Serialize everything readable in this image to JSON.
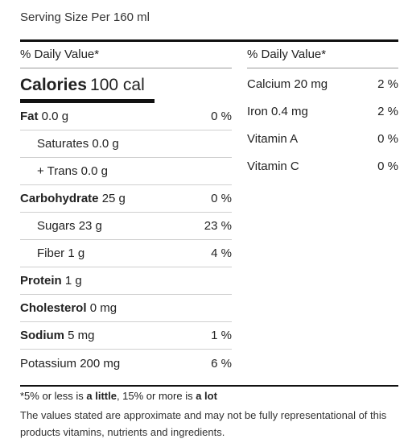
{
  "serving": "Serving Size Per 160 ml",
  "daily_value_label": "% Daily Value*",
  "calories": {
    "label": "Calories",
    "value": "100 cal"
  },
  "left_rows": [
    {
      "label": "Fat",
      "amount": "0.0 g",
      "percent": "0 %",
      "bold": true,
      "indent": false
    },
    {
      "label": "Saturates",
      "amount": "0.0 g",
      "percent": "",
      "bold": false,
      "indent": true
    },
    {
      "label": "+ Trans",
      "amount": "0.0 g",
      "percent": "",
      "bold": false,
      "indent": true
    },
    {
      "label": "Carbohydrate",
      "amount": "25 g",
      "percent": "0 %",
      "bold": true,
      "indent": false
    },
    {
      "label": "Sugars",
      "amount": "23 g",
      "percent": "23 %",
      "bold": false,
      "indent": true
    },
    {
      "label": "Fiber",
      "amount": "1 g",
      "percent": "4 %",
      "bold": false,
      "indent": true
    },
    {
      "label": "Protein",
      "amount": "1 g",
      "percent": "",
      "bold": true,
      "indent": false
    },
    {
      "label": "Cholesterol",
      "amount": "0 mg",
      "percent": "",
      "bold": true,
      "indent": false
    },
    {
      "label": "Sodium",
      "amount": "5 mg",
      "percent": "1 %",
      "bold": true,
      "indent": false
    },
    {
      "label": "Potassium",
      "amount": "200 mg",
      "percent": "6 %",
      "bold": false,
      "indent": false
    }
  ],
  "right_rows": [
    {
      "label": "Calcium",
      "amount": "20 mg",
      "percent": "2 %"
    },
    {
      "label": "Iron",
      "amount": "0.4 mg",
      "percent": "2 %"
    },
    {
      "label": "Vitamin A",
      "amount": "",
      "percent": "0 %"
    },
    {
      "label": "Vitamin C",
      "amount": "",
      "percent": "0 %"
    }
  ],
  "footnote": {
    "prefix": "*5% or less is ",
    "little": "a little",
    "middle": ", 15% or more is ",
    "lot": "a lot"
  },
  "disclaimer": "The values stated are approximate and may not be fully representational of this products vitamins, nutrients and ingredients."
}
